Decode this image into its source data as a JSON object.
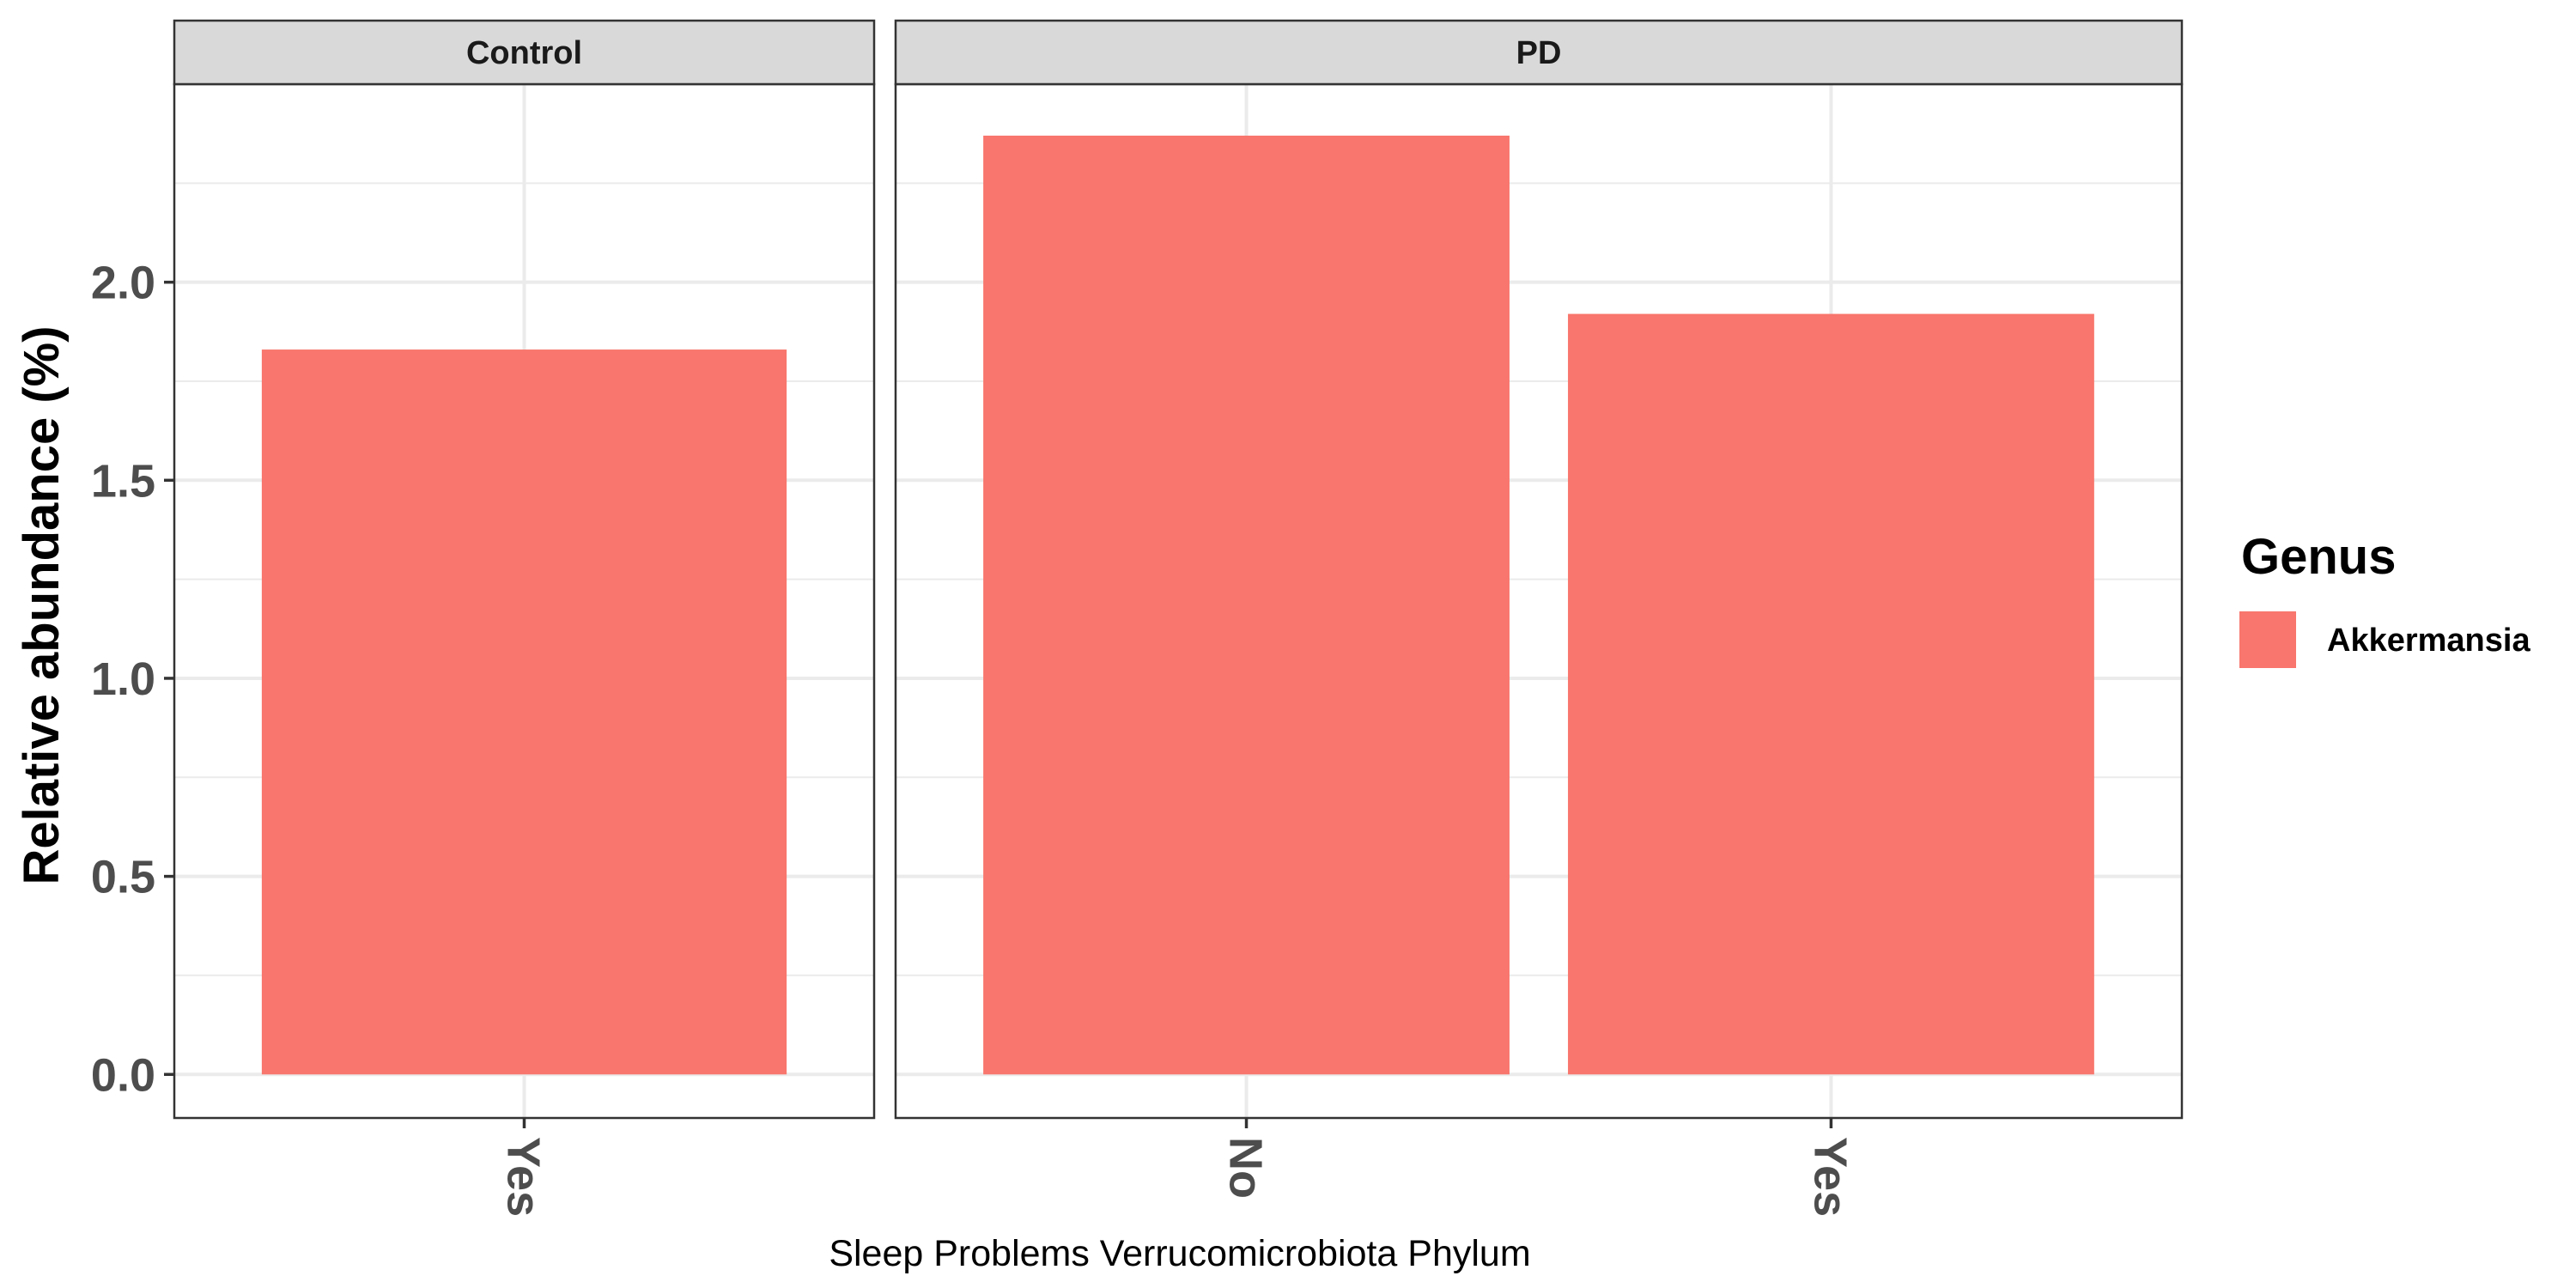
{
  "chart_data": {
    "type": "bar",
    "ylabel": "Relative abundance (%)",
    "xlabel": "Sleep Problems Verrucomicrobiota Phylum",
    "ylim": [
      -0.11,
      2.5
    ],
    "y_ticks": [
      0.0,
      0.5,
      1.0,
      1.5,
      2.0
    ],
    "y_tick_labels": [
      "0.0",
      "0.5",
      "1.0",
      "1.5",
      "2.0"
    ],
    "grid": true,
    "legend": {
      "title": "Genus",
      "position": "right",
      "entries": [
        {
          "label": "Akkermansia",
          "color": "#F8766D"
        }
      ]
    },
    "panels": [
      {
        "strip_label": "Control",
        "categories": [
          "Yes"
        ],
        "series": [
          {
            "name": "Akkermansia",
            "values": [
              1.83
            ]
          }
        ]
      },
      {
        "strip_label": "PD",
        "categories": [
          "No",
          "Yes"
        ],
        "series": [
          {
            "name": "Akkermansia",
            "values": [
              2.37,
              1.92
            ]
          }
        ]
      }
    ]
  }
}
